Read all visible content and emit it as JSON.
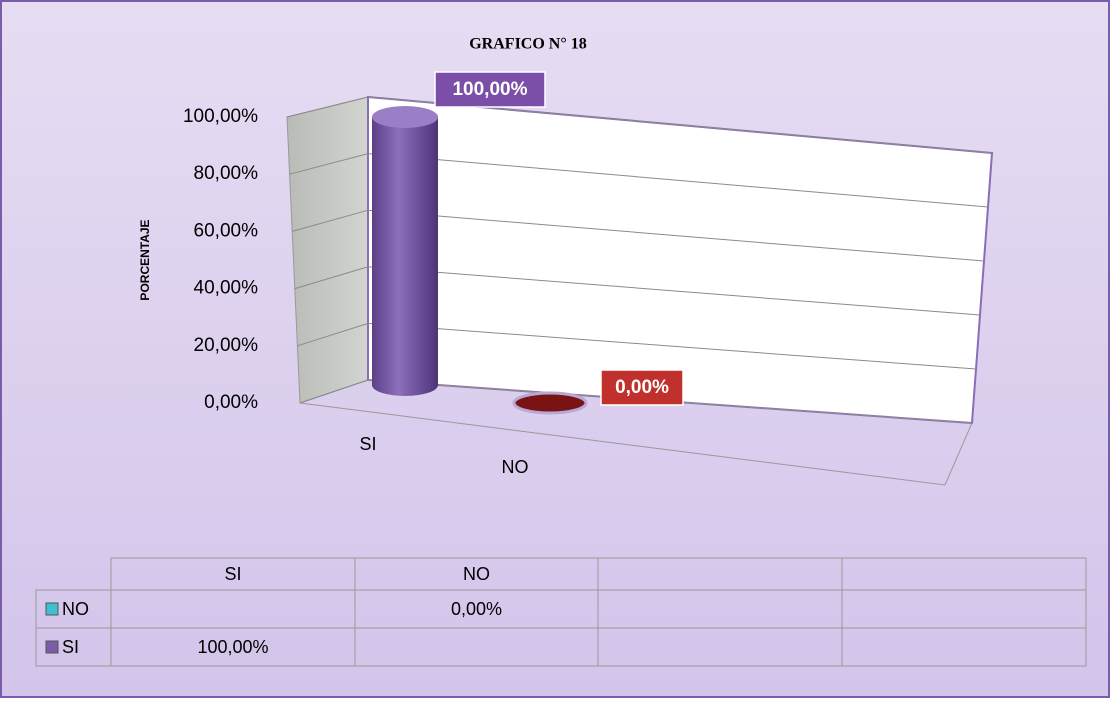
{
  "chart_data": {
    "type": "bar",
    "title": "GRAFICO N° 18",
    "ylabel": "PORCENTAJE",
    "categories": [
      "SI",
      "NO"
    ],
    "series": [
      {
        "name": "NO",
        "color": "#3fbfd0",
        "bar_color": "#7a1414",
        "label_color": "#c0302c",
        "values": [
          null,
          0
        ],
        "value_labels": [
          null,
          "0,00%"
        ]
      },
      {
        "name": "SI",
        "color": "#7b5ca8",
        "bar_color": "#7b5ca8",
        "label_color": "#7b4fa8",
        "values": [
          100,
          null
        ],
        "value_labels": [
          "100,00%",
          null
        ]
      }
    ],
    "ylim": [
      0,
      100
    ],
    "yticks": [
      {
        "value": 0,
        "label": "0,00%"
      },
      {
        "value": 20,
        "label": "20,00%"
      },
      {
        "value": 40,
        "label": "40,00%"
      },
      {
        "value": 60,
        "label": "60,00%"
      },
      {
        "value": 80,
        "label": "80,00%"
      },
      {
        "value": 100,
        "label": "100,00%"
      }
    ],
    "grid": true,
    "data_table": true
  }
}
